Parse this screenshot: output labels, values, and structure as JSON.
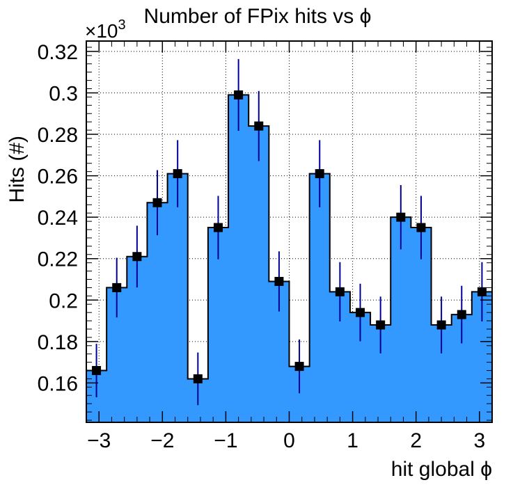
{
  "chart_data": {
    "type": "bar",
    "title": "Number of FPix hits vs ϕ",
    "xlabel": "hit global ϕ",
    "ylabel": "Hits (#)",
    "y_multiplier": "×10",
    "y_multiplier_exp": "3",
    "xlim": [
      -3.2,
      3.2
    ],
    "ylim": [
      0.141,
      0.325
    ],
    "grid": true,
    "fill_color": "#3399ff",
    "marker_color": "#000000",
    "error_color": "#000099",
    "x_ticks": [
      -3,
      -2,
      -1,
      0,
      1,
      2,
      3
    ],
    "x_tick_labels": [
      "−3",
      "−2",
      "−1",
      "0",
      "1",
      "2",
      "3"
    ],
    "y_ticks": [
      0.16,
      0.18,
      0.2,
      0.22,
      0.24,
      0.26,
      0.28,
      0.3,
      0.32
    ],
    "y_tick_labels": [
      "0.16",
      "0.18",
      "0.2",
      "0.22",
      "0.24",
      "0.26",
      "0.28",
      "0.3",
      "0.32"
    ],
    "bin_edges": [
      -3.2,
      -2.88,
      -2.56,
      -2.24,
      -1.92,
      -1.6,
      -1.28,
      -0.96,
      -0.64,
      -0.32,
      0.0,
      0.32,
      0.64,
      0.96,
      1.28,
      1.6,
      1.92,
      2.24,
      2.56,
      2.88,
      3.2
    ],
    "values": [
      0.166,
      0.206,
      0.221,
      0.247,
      0.261,
      0.162,
      0.235,
      0.299,
      0.284,
      0.209,
      0.168,
      0.261,
      0.204,
      0.194,
      0.188,
      0.24,
      0.235,
      0.188,
      0.193,
      0.204
    ],
    "errors": [
      0.0129,
      0.0144,
      0.0149,
      0.0157,
      0.0162,
      0.0127,
      0.0153,
      0.0173,
      0.0169,
      0.0145,
      0.013,
      0.0162,
      0.0143,
      0.0139,
      0.0137,
      0.0155,
      0.0153,
      0.0137,
      0.0139,
      0.0143
    ]
  }
}
